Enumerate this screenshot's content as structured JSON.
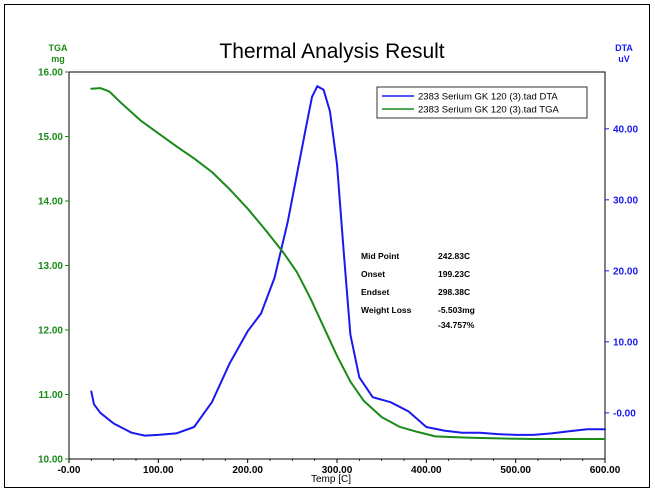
{
  "chart_data": {
    "type": "line",
    "title": "Thermal Analysis Result",
    "xlabel": "Temp  [C]",
    "xlim": [
      0,
      600
    ],
    "x_ticks": [
      "-0.00",
      "100.00",
      "200.00",
      "300.00",
      "400.00",
      "500.00",
      "600.00"
    ],
    "y_left": {
      "label": "TGA",
      "unit": "mg",
      "ylim": [
        10,
        16
      ],
      "ticks": [
        "10.00",
        "11.00",
        "12.00",
        "13.00",
        "14.00",
        "15.00",
        "16.00"
      ]
    },
    "y_right": {
      "label": "DTA",
      "unit": "uV",
      "ylim": [
        -6.5,
        48
      ],
      "ticks": [
        "-0.00",
        "10.00",
        "20.00",
        "30.00",
        "40.00"
      ]
    },
    "series": [
      {
        "name": "2383 Serium GK 120 (3).tad  DTA",
        "axis": "right",
        "color": "#1a1aee",
        "points": [
          [
            25,
            3
          ],
          [
            28,
            1.2
          ],
          [
            35,
            0
          ],
          [
            50,
            -1.5
          ],
          [
            70,
            -2.8
          ],
          [
            85,
            -3.2
          ],
          [
            100,
            -3.1
          ],
          [
            120,
            -2.9
          ],
          [
            140,
            -2
          ],
          [
            160,
            1.5
          ],
          [
            180,
            7
          ],
          [
            200,
            11.5
          ],
          [
            215,
            14
          ],
          [
            230,
            19
          ],
          [
            245,
            27
          ],
          [
            255,
            33.5
          ],
          [
            265,
            40
          ],
          [
            272,
            44.5
          ],
          [
            278,
            46
          ],
          [
            285,
            45.5
          ],
          [
            292,
            42.5
          ],
          [
            300,
            35
          ],
          [
            308,
            22
          ],
          [
            315,
            11
          ],
          [
            325,
            5
          ],
          [
            340,
            2.2
          ],
          [
            360,
            1.5
          ],
          [
            380,
            0.2
          ],
          [
            400,
            -2
          ],
          [
            420,
            -2.5
          ],
          [
            440,
            -2.8
          ],
          [
            460,
            -2.8
          ],
          [
            480,
            -3
          ],
          [
            500,
            -3.1
          ],
          [
            520,
            -3.1
          ],
          [
            540,
            -2.9
          ],
          [
            560,
            -2.6
          ],
          [
            580,
            -2.3
          ],
          [
            600,
            -2.3
          ]
        ]
      },
      {
        "name": "2383 Serium GK 120 (3).tad  TGA",
        "axis": "left",
        "color": "#1a8a1a",
        "points": [
          [
            25,
            15.74
          ],
          [
            35,
            15.75
          ],
          [
            45,
            15.7
          ],
          [
            60,
            15.5
          ],
          [
            80,
            15.25
          ],
          [
            100,
            15.05
          ],
          [
            120,
            14.85
          ],
          [
            140,
            14.66
          ],
          [
            160,
            14.45
          ],
          [
            180,
            14.18
          ],
          [
            200,
            13.88
          ],
          [
            220,
            13.55
          ],
          [
            240,
            13.2
          ],
          [
            255,
            12.9
          ],
          [
            270,
            12.5
          ],
          [
            285,
            12.05
          ],
          [
            300,
            11.6
          ],
          [
            315,
            11.2
          ],
          [
            330,
            10.9
          ],
          [
            350,
            10.65
          ],
          [
            370,
            10.5
          ],
          [
            390,
            10.42
          ],
          [
            410,
            10.35
          ],
          [
            430,
            10.34
          ],
          [
            450,
            10.33
          ],
          [
            480,
            10.32
          ],
          [
            520,
            10.31
          ],
          [
            560,
            10.31
          ],
          [
            600,
            10.31
          ]
        ]
      }
    ],
    "annotations": [
      {
        "label": "Mid Point",
        "value": "242.83C"
      },
      {
        "label": "Onset",
        "value": "199.23C"
      },
      {
        "label": "Endset",
        "value": "298.38C"
      },
      {
        "label": "Weight Loss",
        "value": "-5.503mg",
        "value2": "-34.757%"
      }
    ],
    "legend_position": "top-right",
    "grid": false
  }
}
